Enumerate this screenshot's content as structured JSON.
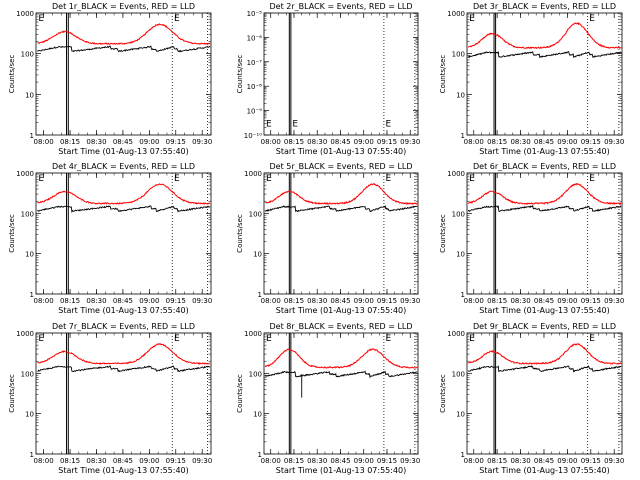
{
  "figure": {
    "background": "#ffffff"
  },
  "colors": {
    "events": "#000000",
    "lld": "#ff0000",
    "axes": "#000000"
  },
  "chart_data": [
    {
      "type": "line",
      "title": "Det 1r_BLACK = Events, RED = LLD",
      "xlabel": "Start Time (01-Aug-13 07:55:40)",
      "ylabel": "Counts/sec",
      "yscale": "log",
      "ylim": [
        1,
        1000
      ],
      "x_tick_labels": [
        "08:00",
        "08:15",
        "08:30",
        "08:45",
        "09:00",
        "09:15",
        "09:30"
      ],
      "y_tick_labels": [
        "1",
        "10",
        "100",
        "1000"
      ],
      "profile": "normal",
      "markers": {
        "solid_lines": [
          "08:13",
          "08:14"
        ],
        "dotted_lines": [
          "09:13",
          "09:33"
        ],
        "e_labels": [
          {
            "time": "07:57",
            "value": 1000
          },
          {
            "time": "09:14",
            "value": 1000
          }
        ]
      },
      "series": [
        {
          "name": "Events",
          "color": "#000000"
        },
        {
          "name": "LLD",
          "color": "#ff0000"
        }
      ]
    },
    {
      "type": "line",
      "title": "Det 2r_BLACK = Events, RED = LLD",
      "xlabel": "Start Time (01-Aug-13 07:55:40)",
      "ylabel": "Counts/sec",
      "yscale": "log",
      "ylim": [
        1e-10,
        1e-05
      ],
      "x_tick_labels": [
        "08:00",
        "08:15",
        "08:30",
        "08:45",
        "09:00",
        "09:15",
        "09:30"
      ],
      "y_tick_labels": [
        "10⁻⁵",
        "10⁻⁶",
        "10⁻⁷",
        "10⁻⁸",
        "10⁻⁹",
        "10⁻¹⁰"
      ],
      "profile": "empty",
      "markers": {
        "solid_lines": [
          "08:12",
          "08:13"
        ],
        "dotted_lines": [
          "09:13",
          "09:33"
        ],
        "e_labels": [
          {
            "time": "07:57",
            "value": 2e-10
          },
          {
            "time": "08:14",
            "value": 2e-10
          },
          {
            "time": "09:14",
            "value": 2e-10
          }
        ]
      },
      "series": []
    },
    {
      "type": "line",
      "title": "Det 3r_BLACK = Events, RED = LLD",
      "xlabel": "Start Time (01-Aug-13 07:55:40)",
      "ylabel": "Counts/sec",
      "yscale": "log",
      "ylim": [
        1,
        1000
      ],
      "x_tick_labels": [
        "08:00",
        "08:15",
        "08:30",
        "08:45",
        "09:00",
        "09:15",
        "09:30"
      ],
      "y_tick_labels": [
        "1",
        "10",
        "100",
        "1000"
      ],
      "profile": "low",
      "markers": {
        "solid_lines": [
          "08:13",
          "08:14"
        ],
        "dotted_lines": [
          "09:13",
          "09:33"
        ],
        "e_labels": [
          {
            "time": "07:57",
            "value": 1000
          },
          {
            "time": "09:14",
            "value": 1000
          }
        ]
      },
      "series": [
        {
          "name": "Events",
          "color": "#000000"
        },
        {
          "name": "LLD",
          "color": "#ff0000"
        }
      ]
    },
    {
      "type": "line",
      "title": "Det 4r_BLACK = Events, RED = LLD",
      "xlabel": "Start Time (01-Aug-13 07:55:40)",
      "ylabel": "Counts/sec",
      "yscale": "log",
      "ylim": [
        1,
        1000
      ],
      "x_tick_labels": [
        "08:00",
        "08:15",
        "08:30",
        "08:45",
        "09:00",
        "09:15",
        "09:30"
      ],
      "y_tick_labels": [
        "1",
        "10",
        "100",
        "1000"
      ],
      "profile": "normal",
      "markers": {
        "solid_lines": [
          "08:13",
          "08:14"
        ],
        "dotted_lines": [
          "09:13",
          "09:33"
        ],
        "e_labels": [
          {
            "time": "07:57",
            "value": 1000
          },
          {
            "time": "09:14",
            "value": 1000
          }
        ]
      },
      "series": [
        {
          "name": "Events",
          "color": "#000000"
        },
        {
          "name": "LLD",
          "color": "#ff0000"
        }
      ]
    },
    {
      "type": "line",
      "title": "Det 5r_BLACK = Events, RED = LLD",
      "xlabel": "Start Time (01-Aug-13 07:55:40)",
      "ylabel": "Counts/sec",
      "yscale": "log",
      "ylim": [
        1,
        1000
      ],
      "x_tick_labels": [
        "08:00",
        "08:15",
        "08:30",
        "08:45",
        "09:00",
        "09:15",
        "09:30"
      ],
      "y_tick_labels": [
        "1",
        "10",
        "100",
        "1000"
      ],
      "profile": "normal",
      "markers": {
        "solid_lines": [
          "08:12",
          "08:13"
        ],
        "dotted_lines": [
          "09:13",
          "09:33"
        ],
        "e_labels": [
          {
            "time": "07:57",
            "value": 1000
          },
          {
            "time": "09:14",
            "value": 1000
          }
        ]
      },
      "series": [
        {
          "name": "Events",
          "color": "#000000"
        },
        {
          "name": "LLD",
          "color": "#ff0000"
        }
      ]
    },
    {
      "type": "line",
      "title": "Det 6r_BLACK = Events, RED = LLD",
      "xlabel": "Start Time (01-Aug-13 07:55:40)",
      "ylabel": "Counts/sec",
      "yscale": "log",
      "ylim": [
        1,
        1000
      ],
      "x_tick_labels": [
        "08:00",
        "08:15",
        "08:30",
        "08:45",
        "09:00",
        "09:15",
        "09:30"
      ],
      "y_tick_labels": [
        "1",
        "10",
        "100",
        "1000"
      ],
      "profile": "normal",
      "markers": {
        "solid_lines": [
          "08:13",
          "08:14"
        ],
        "dotted_lines": [
          "09:13",
          "09:33"
        ],
        "e_labels": [
          {
            "time": "07:57",
            "value": 1000
          },
          {
            "time": "09:14",
            "value": 1000
          }
        ]
      },
      "series": [
        {
          "name": "Events",
          "color": "#000000"
        },
        {
          "name": "LLD",
          "color": "#ff0000"
        }
      ]
    },
    {
      "type": "line",
      "title": "Det 7r_BLACK = Events, RED = LLD",
      "xlabel": "Start Time (01-Aug-13 07:55:40)",
      "ylabel": "Counts/sec",
      "yscale": "log",
      "ylim": [
        1,
        1000
      ],
      "x_tick_labels": [
        "08:00",
        "08:15",
        "08:30",
        "08:45",
        "09:00",
        "09:15",
        "09:30"
      ],
      "y_tick_labels": [
        "1",
        "10",
        "100",
        "1000"
      ],
      "profile": "normal",
      "markers": {
        "solid_lines": [
          "08:13",
          "08:14"
        ],
        "dotted_lines": [
          "09:13",
          "09:33"
        ],
        "e_labels": [
          {
            "time": "07:57",
            "value": 1000
          },
          {
            "time": "09:14",
            "value": 1000
          }
        ]
      },
      "series": [
        {
          "name": "Events",
          "color": "#000000"
        },
        {
          "name": "LLD",
          "color": "#ff0000"
        }
      ]
    },
    {
      "type": "line",
      "title": "Det 8r_BLACK = Events, RED = LLD",
      "xlabel": "Start Time (01-Aug-13 07:55:40)",
      "ylabel": "Counts/sec",
      "yscale": "log",
      "ylim": [
        1,
        1000
      ],
      "x_tick_labels": [
        "08:00",
        "08:15",
        "08:30",
        "08:45",
        "09:00",
        "09:15",
        "09:30"
      ],
      "y_tick_labels": [
        "1",
        "10",
        "100",
        "1000"
      ],
      "profile": "det8",
      "markers": {
        "solid_lines": [
          "08:12",
          "08:13"
        ],
        "dotted_lines": [
          "09:13",
          "09:33"
        ],
        "e_labels": [
          {
            "time": "07:57",
            "value": 1000
          },
          {
            "time": "09:14",
            "value": 1000
          }
        ]
      },
      "series": [
        {
          "name": "Events",
          "color": "#000000"
        },
        {
          "name": "LLD",
          "color": "#ff0000"
        }
      ]
    },
    {
      "type": "line",
      "title": "Det 9r_BLACK = Events, RED = LLD",
      "xlabel": "Start Time (01-Aug-13 07:55:40)",
      "ylabel": "Counts/sec",
      "yscale": "log",
      "ylim": [
        1,
        1000
      ],
      "x_tick_labels": [
        "08:00",
        "08:15",
        "08:30",
        "08:45",
        "09:00",
        "09:15",
        "09:30"
      ],
      "y_tick_labels": [
        "1",
        "10",
        "100",
        "1000"
      ],
      "profile": "normal",
      "markers": {
        "solid_lines": [
          "08:13",
          "08:14"
        ],
        "dotted_lines": [
          "09:13",
          "09:33"
        ],
        "e_labels": [
          {
            "time": "07:57",
            "value": 1000
          },
          {
            "time": "09:14",
            "value": 1000
          }
        ]
      },
      "series": [
        {
          "name": "Events",
          "color": "#000000"
        },
        {
          "name": "LLD",
          "color": "#ff0000"
        }
      ]
    }
  ]
}
